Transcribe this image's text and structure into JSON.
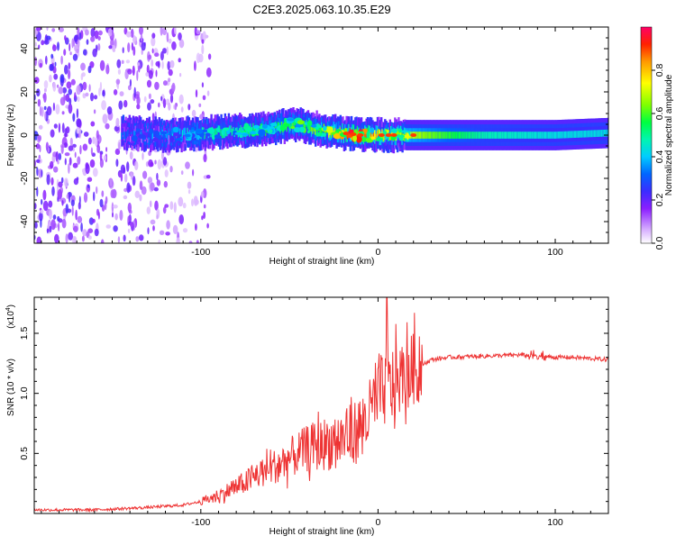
{
  "title": "C2E3.2025.063.10.35.E29",
  "chart_data": [
    {
      "type": "heatmap",
      "xlabel": "Height of straight line (km)",
      "ylabel": "Frequency (Hz)",
      "xlim": [
        -194,
        130
      ],
      "ylim": [
        -50,
        50
      ],
      "xticks": [
        -100,
        0,
        100
      ],
      "xtick_labels": [
        "-100",
        "0",
        "100"
      ],
      "yticks": [
        -40,
        -20,
        0,
        20,
        40
      ],
      "ytick_labels": [
        "-40",
        "-20",
        "0",
        "20",
        "40"
      ],
      "colorbar": {
        "label": "Normalized spectral amplitude",
        "range": [
          0.0,
          1.0
        ],
        "ticks": [
          0.0,
          0.2,
          0.4,
          0.6,
          0.8
        ],
        "tick_labels": [
          "0.0",
          "0.2",
          "0.4",
          "0.6",
          "0.8"
        ],
        "colormap": [
          "#ffffff",
          "#d9b3ff",
          "#8b1fff",
          "#3b2cff",
          "#0066ff",
          "#00ccff",
          "#00f5b0",
          "#00ff40",
          "#80ff00",
          "#ffff00",
          "#ff9900",
          "#ff2200",
          "#ff0066"
        ]
      },
      "ridge_frequency": {
        "x": [
          -140,
          -120,
          -100,
          -80,
          -60,
          -50,
          -40,
          -30,
          -20,
          -10,
          0,
          20,
          60,
          100,
          130
        ],
        "y": [
          1,
          0,
          1,
          2,
          3,
          5,
          4,
          2,
          1,
          0,
          0,
          0,
          0,
          0,
          1
        ],
        "amplitude": [
          0.3,
          0.35,
          0.45,
          0.5,
          0.55,
          0.6,
          0.6,
          0.65,
          0.85,
          0.9,
          0.75,
          0.7,
          0.5,
          0.45,
          0.45
        ]
      },
      "noise_region_x": [
        -194,
        -95
      ]
    },
    {
      "type": "line",
      "xlabel": "Height of straight line (km)",
      "ylabel": "SNR (10 * v/v)",
      "yscale_label": "(x10",
      "yscale_exp": "4",
      "yscale_close": ")",
      "xlim": [
        -194,
        130
      ],
      "ylim": [
        0,
        1.8
      ],
      "xticks": [
        -100,
        0,
        100
      ],
      "xtick_labels": [
        "-100",
        "0",
        "100"
      ],
      "yticks": [
        0.5,
        1.0,
        1.5
      ],
      "ytick_labels": [
        "0.5",
        "1.0",
        "1.5"
      ],
      "series": [
        {
          "name": "SNR",
          "color": "#ee3333",
          "x": [
            -194,
            -160,
            -130,
            -110,
            -100,
            -90,
            -80,
            -70,
            -60,
            -50,
            -40,
            -30,
            -20,
            -15,
            -10,
            -5,
            0,
            5,
            10,
            20,
            30,
            40,
            60,
            80,
            90,
            100,
            110,
            120,
            130
          ],
          "y": [
            0.03,
            0.03,
            0.05,
            0.07,
            0.1,
            0.15,
            0.22,
            0.3,
            0.38,
            0.46,
            0.54,
            0.58,
            0.62,
            0.65,
            0.72,
            0.82,
            0.95,
            1.05,
            1.1,
            1.2,
            1.28,
            1.3,
            1.31,
            1.32,
            1.31,
            1.3,
            1.3,
            1.29,
            1.28
          ]
        }
      ],
      "peak": {
        "x": 5,
        "y": 1.8
      }
    }
  ]
}
